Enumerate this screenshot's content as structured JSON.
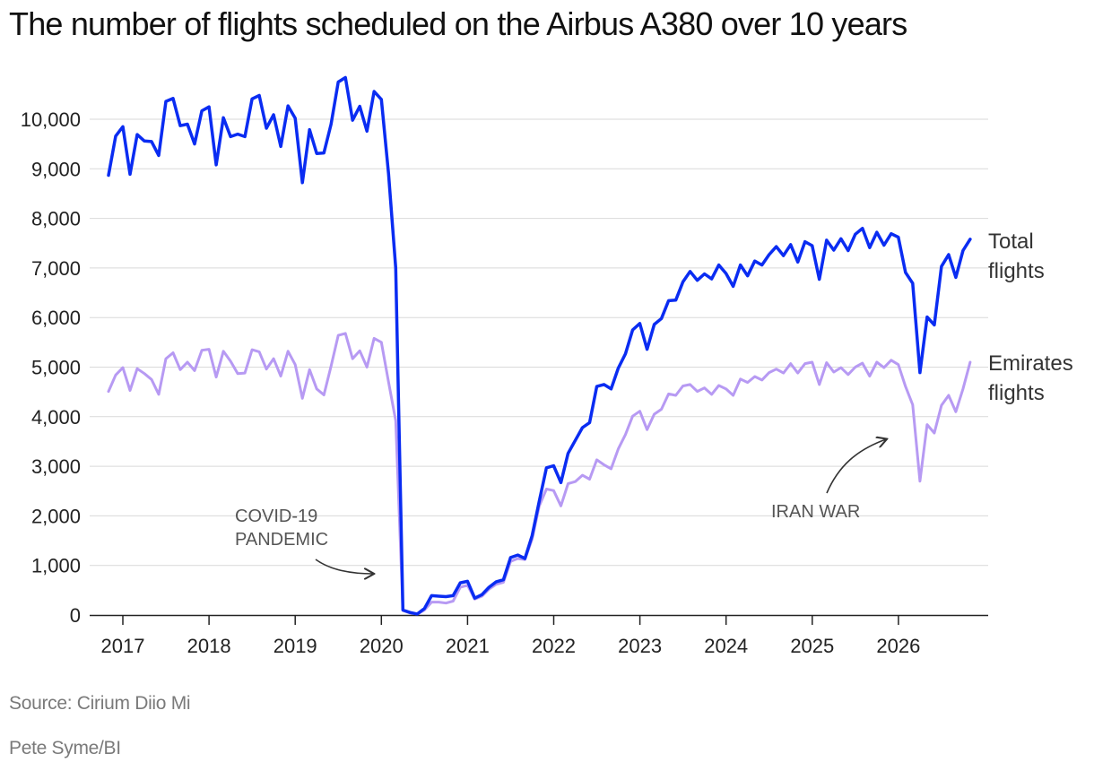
{
  "title": "The number of flights scheduled on the Airbus A380 over 10 years",
  "source": "Source: Cirium Diio Mi",
  "credit": "Pete Syme/BI",
  "colors": {
    "total": "#0a2cf2",
    "emirates": "#b79af3",
    "grid": "#d9d9d9",
    "axis": "#222222",
    "arrow": "#333333"
  },
  "chart_data": {
    "type": "line",
    "x_unit": "year (decimal)",
    "xlim": [
      2016.65,
      2026.9
    ],
    "ylim": [
      0,
      10700
    ],
    "x_ticks": [
      {
        "value": 2017,
        "label": "2017"
      },
      {
        "value": 2018,
        "label": "2018"
      },
      {
        "value": 2019,
        "label": "2019"
      },
      {
        "value": 2020,
        "label": "2020"
      },
      {
        "value": 2021,
        "label": "2021"
      },
      {
        "value": 2022,
        "label": "2022"
      },
      {
        "value": 2023,
        "label": "2023"
      },
      {
        "value": 2024,
        "label": "2024"
      },
      {
        "value": 2025,
        "label": "2025"
      },
      {
        "value": 2026,
        "label": "2026"
      }
    ],
    "y_ticks": [
      {
        "value": 0,
        "label": "0"
      },
      {
        "value": 1000,
        "label": "1,000"
      },
      {
        "value": 2000,
        "label": "2,000"
      },
      {
        "value": 3000,
        "label": "3,000"
      },
      {
        "value": 4000,
        "label": "4,000"
      },
      {
        "value": 5000,
        "label": "5,000"
      },
      {
        "value": 6000,
        "label": "6,000"
      },
      {
        "value": 7000,
        "label": "7,000"
      },
      {
        "value": 8000,
        "label": "8,000"
      },
      {
        "value": 9000,
        "label": "9,000"
      },
      {
        "value": 10000,
        "label": "10,000"
      }
    ],
    "grid": "horizontal",
    "x_start": 2016.833,
    "x_step": 0.08333,
    "series": [
      {
        "key": "total",
        "name": "Total flights",
        "label_lines": [
          "Total",
          "flights"
        ],
        "values": [
          8870,
          9660,
          9850,
          8890,
          9690,
          9560,
          9550,
          9270,
          10360,
          10420,
          9870,
          9900,
          9500,
          10170,
          10250,
          9080,
          10030,
          9650,
          9700,
          9650,
          10410,
          10480,
          9820,
          10090,
          9450,
          10270,
          10020,
          8720,
          9790,
          9310,
          9320,
          9900,
          10750,
          10840,
          9980,
          10260,
          9760,
          10560,
          10400,
          8900,
          7000,
          100,
          50,
          20,
          130,
          390,
          380,
          370,
          390,
          650,
          680,
          340,
          410,
          560,
          670,
          710,
          1160,
          1210,
          1140,
          1600,
          2300,
          2970,
          3010,
          2670,
          3260,
          3520,
          3780,
          3880,
          4610,
          4650,
          4560,
          4980,
          5270,
          5750,
          5880,
          5360,
          5860,
          5980,
          6340,
          6350,
          6720,
          6930,
          6750,
          6880,
          6780,
          7060,
          6890,
          6630,
          7060,
          6840,
          7140,
          7060,
          7270,
          7430,
          7250,
          7470,
          7120,
          7530,
          7450,
          6770,
          7560,
          7360,
          7590,
          7350,
          7680,
          7800,
          7410,
          7720,
          7460,
          7690,
          7620,
          6910,
          6690,
          4890,
          6010,
          5850,
          7030,
          7270,
          6810,
          7350,
          7580
        ]
      },
      {
        "key": "emirates",
        "name": "Emirates flights",
        "label_lines": [
          "Emirates",
          "flights"
        ],
        "values": [
          4510,
          4840,
          4990,
          4530,
          4970,
          4870,
          4750,
          4450,
          5170,
          5290,
          4950,
          5100,
          4930,
          5340,
          5360,
          4800,
          5320,
          5120,
          4870,
          4880,
          5350,
          5310,
          4960,
          5170,
          4820,
          5320,
          5050,
          4370,
          4950,
          4560,
          4440,
          5020,
          5640,
          5680,
          5170,
          5330,
          5000,
          5580,
          5500,
          4700,
          3920,
          90,
          40,
          20,
          100,
          260,
          260,
          240,
          280,
          560,
          600,
          320,
          380,
          520,
          620,
          660,
          1080,
          1140,
          1120,
          1530,
          2200,
          2540,
          2510,
          2200,
          2650,
          2690,
          2820,
          2740,
          3130,
          3030,
          2950,
          3350,
          3640,
          4010,
          4110,
          3740,
          4050,
          4150,
          4460,
          4430,
          4620,
          4650,
          4510,
          4580,
          4450,
          4630,
          4560,
          4430,
          4760,
          4690,
          4810,
          4740,
          4890,
          4960,
          4880,
          5070,
          4880,
          5070,
          5100,
          4650,
          5090,
          4900,
          4990,
          4850,
          5000,
          5080,
          4820,
          5100,
          4990,
          5140,
          5050,
          4610,
          4240,
          2700,
          3840,
          3670,
          4230,
          4430,
          4100,
          4560,
          5100
        ]
      }
    ],
    "annotations": [
      {
        "lines": [
          "COVID-19",
          "PANDEMIC"
        ]
      },
      {
        "lines": [
          "IRAN WAR"
        ]
      }
    ]
  }
}
